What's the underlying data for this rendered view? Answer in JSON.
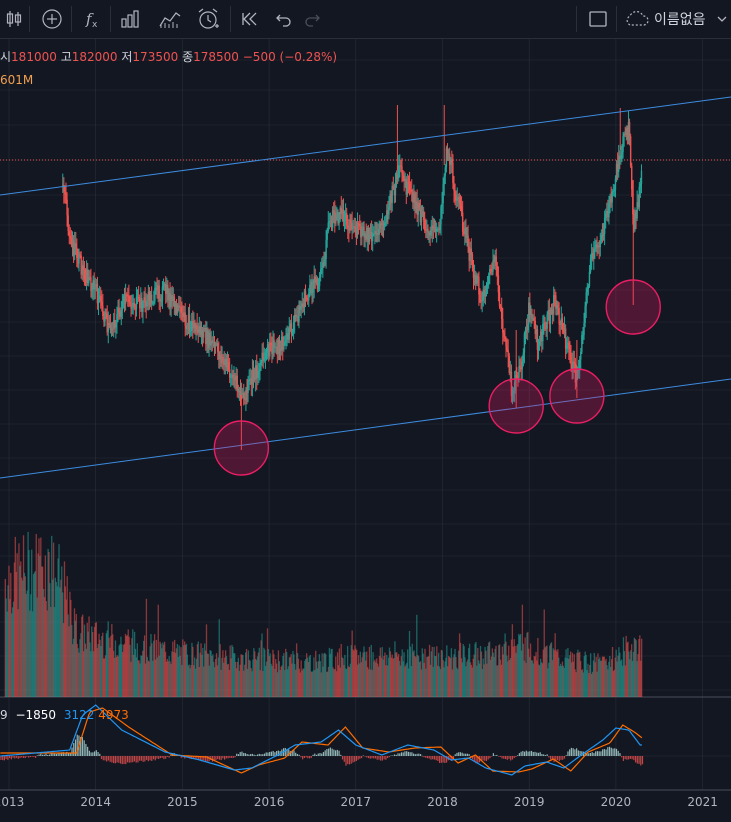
{
  "toolbar": {
    "chart_name": "이름없음",
    "icons": [
      "bar-style-icon",
      "add-indicator-icon",
      "fx-icon",
      "chart-type-icon",
      "compare-icon",
      "alert-icon",
      "replay-icon",
      "undo-icon",
      "redo-icon",
      "layout-icon",
      "cloud-icon",
      "chevron-down-icon"
    ]
  },
  "legend": {
    "open_label": "시",
    "open": "181000",
    "high_label": "고",
    "high": "182000",
    "low_label": "저",
    "low": "173500",
    "close_label": "종",
    "close": "178500",
    "change": "−500 (−0.28%)",
    "volume": "601M"
  },
  "macd": {
    "prefix": "9",
    "histogram": "−1850",
    "macd_line": "3122",
    "signal_line": "4973",
    "colors": {
      "histogram": "#ffffff",
      "macd": "#2196f3",
      "signal": "#ff6d00"
    }
  },
  "x_axis": {
    "years": [
      "2013",
      "2014",
      "2015",
      "2016",
      "2017",
      "2018",
      "2019",
      "2020",
      "2021"
    ]
  },
  "colors": {
    "background": "#131722",
    "grid": "#363a45",
    "up": "#26a69a",
    "down": "#ef5350",
    "trendline": "#2962ff",
    "circle": "#e91e63",
    "price_line": "#ef5350"
  },
  "chart_data": {
    "type": "candlestick",
    "x_range": [
      2012.9,
      2021.4
    ],
    "price_path": [
      [
        2013.62,
        185
      ],
      [
        2013.72,
        245
      ],
      [
        2013.85,
        270
      ],
      [
        2014.0,
        290
      ],
      [
        2014.15,
        330
      ],
      [
        2014.35,
        300
      ],
      [
        2014.5,
        305
      ],
      [
        2014.8,
        290
      ],
      [
        2015.0,
        320
      ],
      [
        2015.2,
        330
      ],
      [
        2015.4,
        350
      ],
      [
        2015.6,
        380
      ],
      [
        2015.7,
        400
      ],
      [
        2015.82,
        375
      ],
      [
        2016.0,
        350
      ],
      [
        2016.2,
        340
      ],
      [
        2016.4,
        300
      ],
      [
        2016.6,
        275
      ],
      [
        2016.7,
        220
      ],
      [
        2016.85,
        215
      ],
      [
        2017.0,
        230
      ],
      [
        2017.2,
        240
      ],
      [
        2017.35,
        215
      ],
      [
        2017.5,
        170
      ],
      [
        2017.6,
        190
      ],
      [
        2017.8,
        225
      ],
      [
        2017.95,
        235
      ],
      [
        2018.05,
        145
      ],
      [
        2018.15,
        190
      ],
      [
        2018.3,
        250
      ],
      [
        2018.45,
        300
      ],
      [
        2018.6,
        260
      ],
      [
        2018.7,
        330
      ],
      [
        2018.8,
        390
      ],
      [
        2018.9,
        370
      ],
      [
        2019.0,
        305
      ],
      [
        2019.1,
        345
      ],
      [
        2019.3,
        300
      ],
      [
        2019.45,
        350
      ],
      [
        2019.55,
        380
      ],
      [
        2019.7,
        265
      ],
      [
        2019.85,
        230
      ],
      [
        2019.95,
        200
      ],
      [
        2020.05,
        150
      ],
      [
        2020.15,
        130
      ],
      [
        2020.2,
        230
      ],
      [
        2020.3,
        175
      ]
    ],
    "volume_level": [
      [
        2013.0,
        0.9
      ],
      [
        2013.4,
        1.0
      ],
      [
        2013.6,
        0.85
      ],
      [
        2013.75,
        0.5
      ],
      [
        2014.0,
        0.45
      ],
      [
        2014.5,
        0.38
      ],
      [
        2015.0,
        0.33
      ],
      [
        2015.5,
        0.3
      ],
      [
        2016.0,
        0.28
      ],
      [
        2016.5,
        0.27
      ],
      [
        2017.0,
        0.3
      ],
      [
        2017.5,
        0.32
      ],
      [
        2018.0,
        0.3
      ],
      [
        2018.5,
        0.32
      ],
      [
        2018.9,
        0.4
      ],
      [
        2019.3,
        0.3
      ],
      [
        2019.8,
        0.25
      ],
      [
        2020.0,
        0.3
      ],
      [
        2020.2,
        0.4
      ],
      [
        2020.3,
        0.35
      ]
    ],
    "trendlines": [
      {
        "name": "upper-channel",
        "from": [
          2012.9,
          2013.0
        ],
        "to": [
          2021.4,
          2021.4
        ]
      },
      {
        "name": "lower-channel",
        "from": [
          2012.9,
          2021.4
        ],
        "to": [
          2021.4,
          2021.4
        ]
      }
    ],
    "highlighted_lows": [
      2015.68,
      2018.85,
      2019.55,
      2020.2
    ]
  }
}
